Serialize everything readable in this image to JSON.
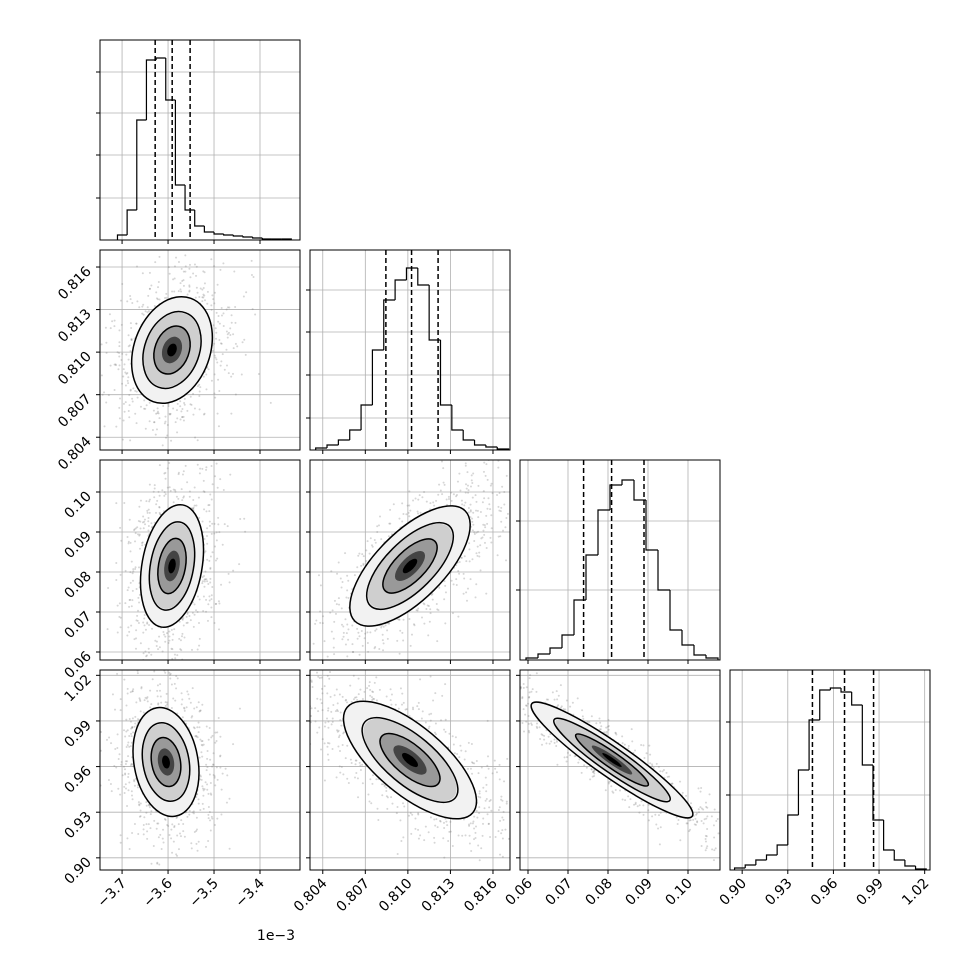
{
  "chart_data": {
    "type": "corner",
    "offset_label": "1e−3",
    "parameters": [
      {
        "lim": [
          -3.748,
          -3.313
        ],
        "ticks": [
          {
            "value": -3.7,
            "label": "−3.7"
          },
          {
            "value": -3.6,
            "label": "−3.6"
          },
          {
            "value": -3.5,
            "label": "−3.5"
          },
          {
            "value": -3.4,
            "label": "−3.4"
          }
        ],
        "hist": {
          "bins": [
            -3.71,
            -3.689,
            -3.668,
            -3.647,
            -3.626,
            -3.605,
            -3.584,
            -3.563,
            -3.542,
            -3.521,
            -3.5,
            -3.479,
            -3.458,
            -3.437,
            -3.416,
            -3.395,
            -3.374,
            -3.353,
            -3.332
          ],
          "counts": [
            5,
            30,
            120,
            180,
            182,
            140,
            55,
            30,
            14,
            8,
            6,
            5,
            4,
            3,
            2,
            1,
            1,
            1
          ],
          "ylim": [
            0,
            200
          ],
          "yticks": [
            42,
            85,
            127,
            168
          ]
        },
        "quantiles": [
          -3.628,
          -3.591,
          -3.552
        ]
      },
      {
        "lim": [
          0.8031,
          0.8172
        ],
        "ticks": [
          0.804,
          0.807,
          {
            "value": 0.81,
            "label": "0.810"
          },
          0.813,
          0.816
        ],
        "hist": {
          "bins": [
            0.8035,
            0.8043,
            0.8051,
            0.8059,
            0.8067,
            0.8075,
            0.8083,
            0.8091,
            0.8099,
            0.8107,
            0.8115,
            0.8123,
            0.8131,
            0.8139,
            0.8147,
            0.8155,
            0.8163,
            0.8171
          ],
          "counts": [
            2,
            5,
            10,
            20,
            45,
            100,
            150,
            170,
            182,
            165,
            110,
            45,
            20,
            10,
            5,
            3,
            1
          ],
          "ylim": [
            0,
            200
          ],
          "yticks": [
            32,
            75,
            118,
            160
          ]
        },
        "quantiles": [
          0.80845,
          0.81026,
          0.81213
        ]
      },
      {
        "lim": [
          0.058,
          0.108
        ],
        "ticks": [
          0.06,
          0.07,
          0.08,
          0.09,
          {
            "value": 0.1,
            "label": "0.10"
          }
        ],
        "hist": {
          "bins": [
            0.0595,
            0.0625,
            0.0655,
            0.0685,
            0.0715,
            0.0745,
            0.0775,
            0.0805,
            0.0835,
            0.0865,
            0.0895,
            0.0925,
            0.0955,
            0.0985,
            0.1015,
            0.1045,
            0.1075
          ],
          "counts": [
            2,
            6,
            12,
            25,
            60,
            105,
            150,
            175,
            180,
            160,
            110,
            70,
            30,
            15,
            5,
            2
          ],
          "ylim": [
            0,
            200
          ],
          "yticks": [
            70,
            139
          ]
        },
        "quantiles": [
          0.0739,
          0.0809,
          0.089
        ]
      },
      {
        "lim": [
          0.892,
          1.0235
        ],
        "ticks": [
          {
            "value": 0.9,
            "label": "0.90"
          },
          0.93,
          0.96,
          0.99,
          1.02
        ],
        "hist": {
          "bins": [
            0.895,
            0.902,
            0.909,
            0.916,
            0.923,
            0.93,
            0.937,
            0.944,
            0.951,
            0.958,
            0.965,
            0.972,
            0.979,
            0.986,
            0.993,
            1.0,
            1.007,
            1.014,
            1.021
          ],
          "counts": [
            2,
            5,
            10,
            15,
            25,
            55,
            100,
            150,
            180,
            182,
            178,
            165,
            105,
            50,
            20,
            10,
            4,
            1
          ],
          "ylim": [
            0,
            200
          ],
          "yticks": [
            75,
            148
          ]
        },
        "quantiles": [
          0.9462,
          0.9673,
          0.9864
        ]
      }
    ]
  }
}
